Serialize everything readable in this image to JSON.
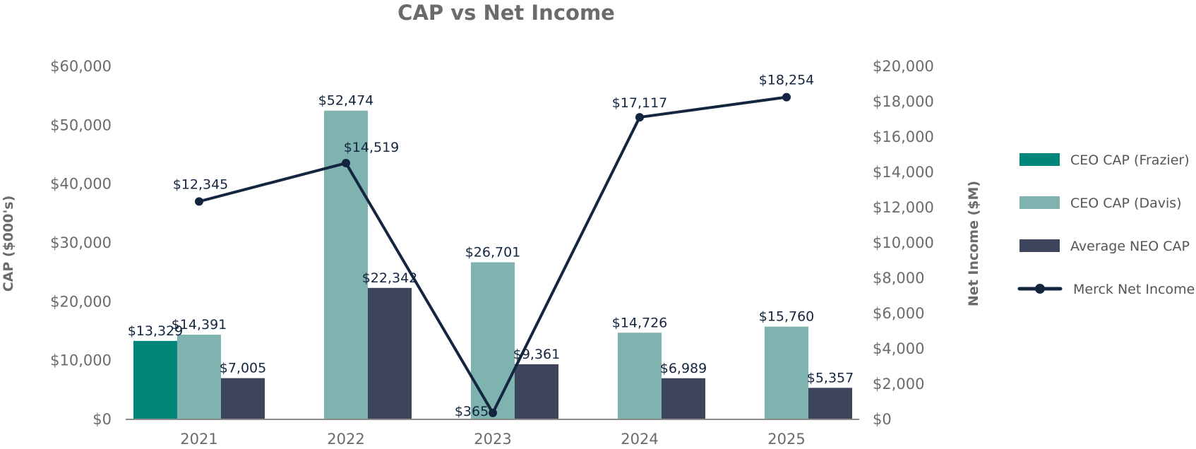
{
  "chart_data": {
    "type": "bar",
    "title": "CAP vs Net Income",
    "categories": [
      "2021",
      "2022",
      "2023",
      "2024",
      "2025"
    ],
    "y_left": {
      "label": "CAP ($000's)",
      "range": [
        0,
        60000
      ],
      "ticks": [
        {
          "value": 0,
          "label": "$0"
        },
        {
          "value": 10000,
          "label": "$10,000"
        },
        {
          "value": 20000,
          "label": "$20,000"
        },
        {
          "value": 30000,
          "label": "$30,000"
        },
        {
          "value": 40000,
          "label": "$40,000"
        },
        {
          "value": 50000,
          "label": "$50,000"
        },
        {
          "value": 60000,
          "label": "$60,000"
        }
      ]
    },
    "y_right": {
      "label": "Net Income ($M)",
      "range": [
        0,
        20000
      ],
      "ticks": [
        {
          "value": 0,
          "label": "$0"
        },
        {
          "value": 2000,
          "label": "$2,000"
        },
        {
          "value": 4000,
          "label": "$4,000"
        },
        {
          "value": 6000,
          "label": "$6,000"
        },
        {
          "value": 8000,
          "label": "$8,000"
        },
        {
          "value": 10000,
          "label": "$10,000"
        },
        {
          "value": 12000,
          "label": "$12,000"
        },
        {
          "value": 14000,
          "label": "$14,000"
        },
        {
          "value": 16000,
          "label": "$16,000"
        },
        {
          "value": 18000,
          "label": "$18,000"
        },
        {
          "value": 20000,
          "label": "$20,000"
        }
      ]
    },
    "grid": false,
    "legend_position": "right",
    "bar_series": [
      {
        "name": "CEO CAP (Frazier)",
        "color": "#00877a",
        "values": [
          13329,
          null,
          null,
          null,
          null
        ],
        "labels": [
          "$13,329",
          null,
          null,
          null,
          null
        ]
      },
      {
        "name": "CEO CAP (Davis)",
        "color": "#7fb3b0",
        "values": [
          14391,
          52474,
          26701,
          14726,
          15760
        ],
        "labels": [
          "$14,391",
          "$52,474",
          "$26,701",
          "$14,726",
          "$15,760"
        ]
      },
      {
        "name": "Average NEO CAP",
        "color": "#3d445c",
        "values": [
          7005,
          22342,
          9361,
          6989,
          5357
        ],
        "labels": [
          "$7,005",
          "$22,342",
          "$9,361",
          "$6,989",
          "$5,357"
        ]
      }
    ],
    "line_series": {
      "name": "Merck Net Income",
      "color": "#14263f",
      "axis": "right",
      "values": [
        12345,
        14519,
        365,
        17117,
        18254
      ],
      "labels": [
        "$12,345",
        "$14,519",
        "$365",
        "$17,117",
        "$18,254"
      ]
    }
  }
}
